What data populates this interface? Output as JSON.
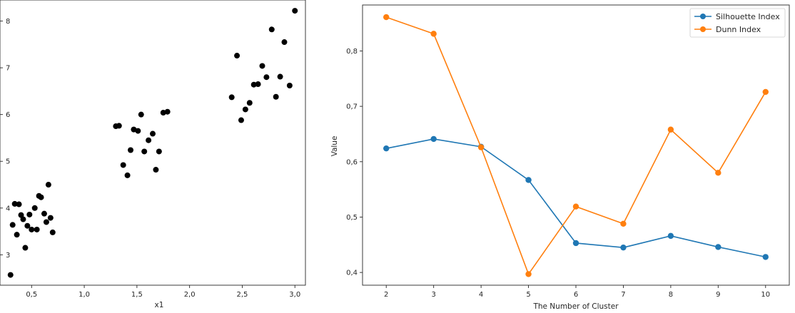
{
  "colors": {
    "scatter_points": "#000000",
    "silhouette": "#1f77b4",
    "dunn": "#ff7f0e"
  },
  "chart_data": [
    {
      "type": "scatter",
      "xlabel": "x1",
      "ylabel": "",
      "xlim": [
        0.2,
        3.1
      ],
      "ylim": [
        2.35,
        8.45
      ],
      "xticks": [
        0.5,
        1.0,
        1.5,
        2.0,
        2.5,
        3.0
      ],
      "xtick_labels": [
        "0,5",
        "1,0",
        "1,5",
        "2,0",
        "2,5",
        "3,0"
      ],
      "yticks": [
        3,
        4,
        5,
        6,
        7,
        8
      ],
      "ytick_labels": [
        "3",
        "4",
        "5",
        "6",
        "7",
        "8"
      ],
      "grid": false,
      "points": [
        [
          0.3,
          2.57
        ],
        [
          0.32,
          3.64
        ],
        [
          0.34,
          4.09
        ],
        [
          0.36,
          3.43
        ],
        [
          0.38,
          4.08
        ],
        [
          0.4,
          3.85
        ],
        [
          0.42,
          3.76
        ],
        [
          0.44,
          3.15
        ],
        [
          0.46,
          3.62
        ],
        [
          0.48,
          3.86
        ],
        [
          0.5,
          3.54
        ],
        [
          0.53,
          4.0
        ],
        [
          0.55,
          3.54
        ],
        [
          0.57,
          4.26
        ],
        [
          0.59,
          4.23
        ],
        [
          0.62,
          3.88
        ],
        [
          0.64,
          3.7
        ],
        [
          0.66,
          4.5
        ],
        [
          0.68,
          3.79
        ],
        [
          0.7,
          3.48
        ],
        [
          1.3,
          5.75
        ],
        [
          1.33,
          5.76
        ],
        [
          1.37,
          4.92
        ],
        [
          1.41,
          4.7
        ],
        [
          1.44,
          5.24
        ],
        [
          1.47,
          5.68
        ],
        [
          1.51,
          5.65
        ],
        [
          1.54,
          6.0
        ],
        [
          1.57,
          5.21
        ],
        [
          1.61,
          5.45
        ],
        [
          1.65,
          5.59
        ],
        [
          1.68,
          4.82
        ],
        [
          1.71,
          5.21
        ],
        [
          1.75,
          6.04
        ],
        [
          1.79,
          6.06
        ],
        [
          2.4,
          6.37
        ],
        [
          2.45,
          7.26
        ],
        [
          2.49,
          5.88
        ],
        [
          2.53,
          6.11
        ],
        [
          2.57,
          6.25
        ],
        [
          2.61,
          6.64
        ],
        [
          2.65,
          6.65
        ],
        [
          2.69,
          7.04
        ],
        [
          2.73,
          6.8
        ],
        [
          2.78,
          7.82
        ],
        [
          2.82,
          6.38
        ],
        [
          2.86,
          6.81
        ],
        [
          2.9,
          7.55
        ],
        [
          2.95,
          6.62
        ],
        [
          3.0,
          8.22
        ]
      ]
    },
    {
      "type": "line",
      "xlabel": "The Number of Cluster",
      "ylabel": "Value",
      "xlim": [
        1.5,
        10.5
      ],
      "ylim": [
        0.377,
        0.883
      ],
      "xticks": [
        2,
        3,
        4,
        5,
        6,
        7,
        8,
        9,
        10
      ],
      "xtick_labels": [
        "2",
        "3",
        "4",
        "5",
        "6",
        "7",
        "8",
        "9",
        "10"
      ],
      "yticks": [
        0.4,
        0.5,
        0.6,
        0.7,
        0.8
      ],
      "ytick_labels": [
        "0,4",
        "0,5",
        "0,6",
        "0,7",
        "0,8"
      ],
      "grid": false,
      "legend": "top-right",
      "x": [
        2,
        3,
        4,
        5,
        6,
        7,
        8,
        9,
        10
      ],
      "series": [
        {
          "name": "Silhouette Index",
          "values": [
            0.624,
            0.641,
            0.627,
            0.567,
            0.453,
            0.445,
            0.466,
            0.446,
            0.428
          ]
        },
        {
          "name": "Dunn Index",
          "values": [
            0.861,
            0.831,
            0.626,
            0.397,
            0.519,
            0.488,
            0.658,
            0.58,
            0.726
          ]
        }
      ]
    }
  ]
}
